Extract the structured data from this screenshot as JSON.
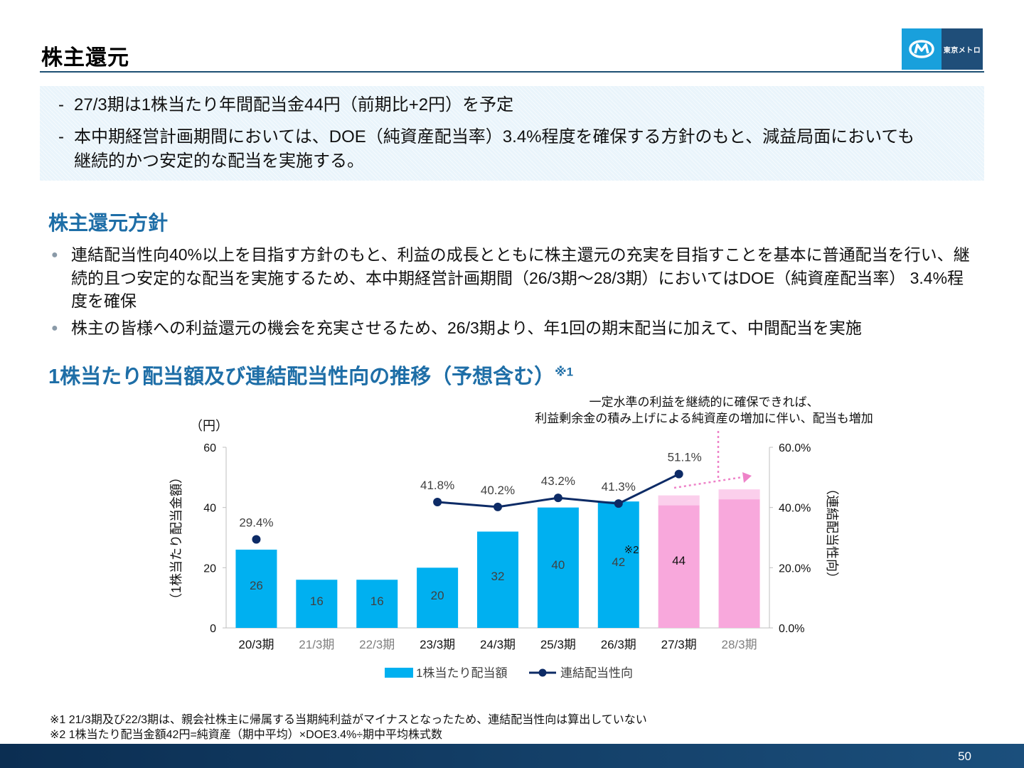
{
  "header": {
    "title": "株主還元",
    "logo_text": "東京メトロ"
  },
  "summary": [
    "27/3期は1株当たり年間配当金44円（前期比+2円）を予定",
    "本中期経営計画期間においては、DOE（純資産配当率）3.4%程度を確保する方針のもと、減益局面においても",
    "継続的かつ安定的な配当を実施する。"
  ],
  "policy": {
    "heading": "株主還元方針",
    "bullets": [
      "連結配当性向40%以上を目指す方針のもと、利益の成長とともに株主還元の充実を目指すことを基本に普通配当を行い、継",
      "続的且つ安定的な配当を実施するため、本中期経営計画期間（26/3期～28/3期）においてはDOE（純資産配当率） 3.4%程",
      "度を確保",
      "株主の皆様への利益還元の機会を充実させるため、26/3期より、年1回の期末配当に加えて、中間配当を実施"
    ]
  },
  "chart_section": {
    "heading": "1株当たり配当額及び連結配当性向の推移（予想含む）",
    "heading_note": "※1",
    "annotation_line1": "一定水準の利益を継続的に確保できれば、",
    "annotation_line2": "利益剰余金の積み上げによる純資産の増加に伴い、配当も増加"
  },
  "chart_data": {
    "type": "bar",
    "categories": [
      "20/3期",
      "21/3期",
      "22/3期",
      "23/3期",
      "24/3期",
      "25/3期",
      "26/3期",
      "27/3期",
      "28/3期"
    ],
    "series": [
      {
        "name": "1株当たり配当額",
        "type": "bar",
        "axis": "left",
        "values": [
          26,
          16,
          16,
          20,
          32,
          40,
          42,
          44,
          46
        ],
        "labels": [
          "26",
          "16",
          "16",
          "20",
          "32",
          "40",
          "42",
          "44",
          ""
        ],
        "color": "#00b0f0",
        "forecast_color": "#f8a8dc"
      },
      {
        "name": "連結配当性向",
        "type": "line",
        "axis": "right",
        "values": [
          29.4,
          null,
          null,
          41.8,
          40.2,
          43.2,
          41.3,
          51.1,
          null
        ],
        "labels": [
          "29.4%",
          "",
          "",
          "41.8%",
          "40.2%",
          "43.2%",
          "41.3%",
          "51.1%",
          ""
        ],
        "color": "#0d2b66"
      }
    ],
    "yleft": {
      "label": "（1株当たり配当金額）",
      "unit": "（円）",
      "ticks": [
        "0",
        "20",
        "40",
        "60"
      ],
      "range": [
        0,
        60
      ]
    },
    "yright": {
      "label": "（連結配当性向）",
      "ticks": [
        "0.0%",
        "20.0%",
        "40.0%",
        "60.0%"
      ],
      "range": [
        0,
        60
      ]
    },
    "annotation_note": "※2",
    "legend_position": "bottom",
    "grid": false
  },
  "footnotes": [
    "※1  21/3期及び22/3期は、親会社株主に帰属する当期純利益がマイナスとなったため、連結配当性向は算出していない",
    "※2  1株当たり配当金額42円=純資産（期中平均）×DOE3.4%÷期中平均株式数"
  ],
  "page_number": "50",
  "colors": {
    "bar": "#00b0f0",
    "forecast_bar": "#f8a8dc",
    "line": "#0d2b66",
    "heading": "#1e6ea7",
    "footer": "#0b2e52",
    "arrow": "#ee82c8"
  }
}
